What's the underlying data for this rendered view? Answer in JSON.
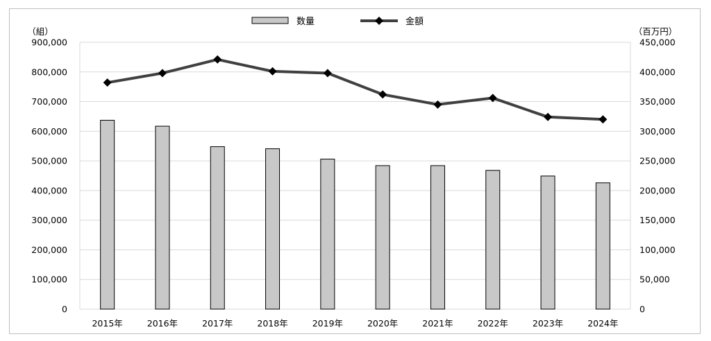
{
  "chart_data": {
    "type": "bar+line",
    "categories": [
      "2015年",
      "2016年",
      "2017年",
      "2018年",
      "2019年",
      "2020年",
      "2021年",
      "2022年",
      "2023年",
      "2024年"
    ],
    "series": [
      {
        "name": "数量",
        "type": "bar",
        "axis": "left",
        "values": [
          637000,
          617000,
          548000,
          541000,
          506000,
          484000,
          484000,
          468000,
          449000,
          426000
        ],
        "color": "#c8c8c8"
      },
      {
        "name": "金額",
        "type": "line",
        "axis": "right",
        "marker": "diamond",
        "values": [
          382000,
          398000,
          421000,
          401000,
          398000,
          362000,
          345000,
          356000,
          324000,
          320000
        ],
        "color": "#404040"
      }
    ],
    "left_axis": {
      "unit": "（組）",
      "ylim": [
        0,
        900000
      ],
      "ticks": [
        "0",
        "100,000",
        "200,000",
        "300,000",
        "400,000",
        "500,000",
        "600,000",
        "700,000",
        "800,000",
        "900,000"
      ]
    },
    "right_axis": {
      "unit": "（百万円）",
      "ylim": [
        0,
        450000
      ],
      "ticks": [
        "0",
        "50,000",
        "100,000",
        "150,000",
        "200,000",
        "250,000",
        "300,000",
        "350,000",
        "400,000",
        "450,000"
      ]
    },
    "grid": true,
    "legend_position": "top-center",
    "colors": {
      "bar_fill": "#c8c8c8",
      "bar_stroke": "#000000",
      "line": "#404040",
      "marker": "#000000",
      "grid": "#d9d9d9"
    }
  }
}
